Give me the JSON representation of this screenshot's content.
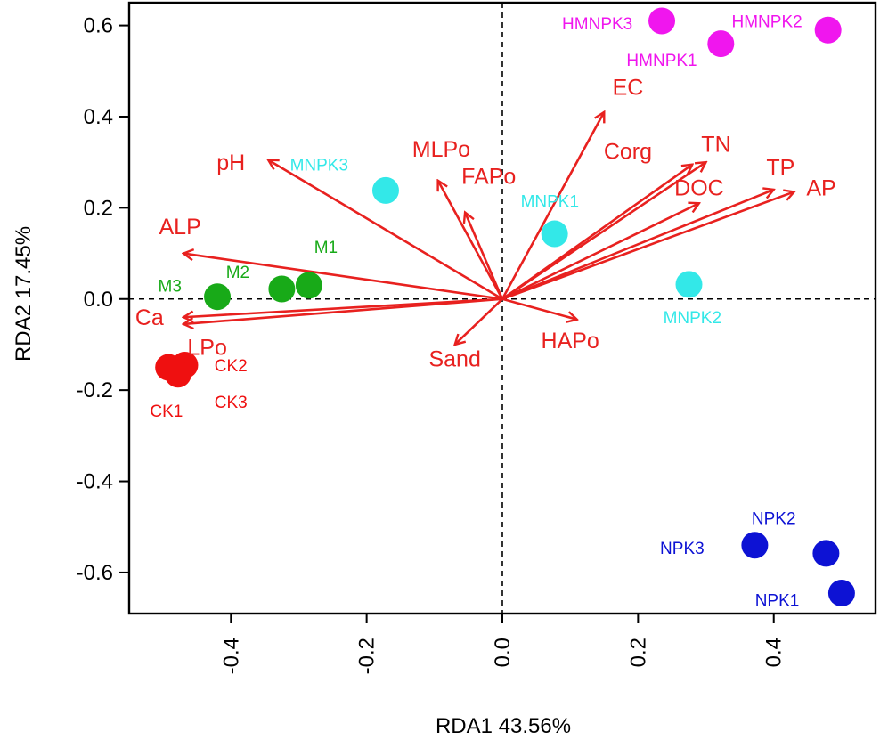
{
  "chart_data": {
    "type": "scatter",
    "xlabel": "RDA1 43.56%",
    "ylabel": "RDA2 17.45%",
    "xlim": [
      -0.55,
      0.55
    ],
    "ylim": [
      -0.69,
      0.65
    ],
    "xticks": [
      -0.4,
      -0.2,
      0.0,
      0.2,
      0.4
    ],
    "xtick_labels": [
      "-0.4",
      "-0.2",
      "0.0",
      "0.2",
      "0.4"
    ],
    "yticks": [
      -0.6,
      -0.4,
      -0.2,
      0.0,
      0.2,
      0.4,
      0.6
    ],
    "ytick_labels": [
      "-0.6",
      "-0.4",
      "-0.2",
      "0.0",
      "0.2",
      "0.4",
      "0.6"
    ],
    "grid": false,
    "reference_lines": [
      "x = 0 (dashed)",
      "y = 0 (dashed)"
    ],
    "vector_color": "#e8211f",
    "vectors": [
      {
        "label": "EC",
        "x": 0.15,
        "y": 0.41,
        "lx": 0.185,
        "ly": 0.465
      },
      {
        "label": "Corg",
        "x": 0.28,
        "y": 0.295,
        "lx": 0.185,
        "ly": 0.325
      },
      {
        "label": "TN",
        "x": 0.3,
        "y": 0.3,
        "lx": 0.315,
        "ly": 0.34
      },
      {
        "label": "TP",
        "x": 0.4,
        "y": 0.24,
        "lx": 0.41,
        "ly": 0.29
      },
      {
        "label": "DOC",
        "x": 0.29,
        "y": 0.21,
        "lx": 0.29,
        "ly": 0.245
      },
      {
        "label": "AP",
        "x": 0.43,
        "y": 0.235,
        "lx": 0.47,
        "ly": 0.245
      },
      {
        "label": "pH",
        "x": -0.345,
        "y": 0.305,
        "lx": -0.4,
        "ly": 0.3
      },
      {
        "label": "MLPo",
        "x": -0.095,
        "y": 0.26,
        "lx": -0.09,
        "ly": 0.33
      },
      {
        "label": "FAPo",
        "x": -0.055,
        "y": 0.19,
        "lx": -0.02,
        "ly": 0.27
      },
      {
        "label": "ALP",
        "x": -0.47,
        "y": 0.1,
        "lx": -0.475,
        "ly": 0.16
      },
      {
        "label": "Ca",
        "x": -0.47,
        "y": -0.04,
        "lx": -0.52,
        "ly": -0.04
      },
      {
        "label": "LPo",
        "x": -0.47,
        "y": -0.055,
        "lx": -0.435,
        "ly": -0.105
      },
      {
        "label": "Sand",
        "x": -0.07,
        "y": -0.1,
        "lx": -0.07,
        "ly": -0.13
      },
      {
        "label": "HAPo",
        "x": 0.11,
        "y": -0.045,
        "lx": 0.1,
        "ly": -0.09
      }
    ],
    "series": [
      {
        "name": "HMNPK",
        "color": "#f016ee",
        "points": [
          {
            "label": "HMNPK3",
            "x": 0.235,
            "y": 0.61,
            "lx": 0.14,
            "ly": 0.605
          },
          {
            "label": "HMNPK1",
            "x": 0.322,
            "y": 0.56,
            "lx": 0.235,
            "ly": 0.525
          },
          {
            "label": "HMNPK2",
            "x": 0.48,
            "y": 0.59,
            "lx": 0.39,
            "ly": 0.61
          }
        ]
      },
      {
        "name": "MNPK",
        "color": "#33e8e8",
        "points": [
          {
            "label": "MNPK3",
            "x": -0.172,
            "y": 0.238,
            "lx": -0.27,
            "ly": 0.295
          },
          {
            "label": "MNPK1",
            "x": 0.077,
            "y": 0.143,
            "lx": 0.07,
            "ly": 0.215
          },
          {
            "label": "MNPK2",
            "x": 0.275,
            "y": 0.032,
            "lx": 0.28,
            "ly": -0.04
          }
        ]
      },
      {
        "name": "M",
        "color": "#18aa18",
        "points": [
          {
            "label": "M1",
            "x": -0.285,
            "y": 0.03,
            "lx": -0.26,
            "ly": 0.115
          },
          {
            "label": "M2",
            "x": -0.325,
            "y": 0.022,
            "lx": -0.39,
            "ly": 0.06
          },
          {
            "label": "M3",
            "x": -0.42,
            "y": 0.005,
            "lx": -0.49,
            "ly": 0.03
          }
        ]
      },
      {
        "name": "CK",
        "color": "#ef1010",
        "points": [
          {
            "label": "CK2",
            "x": -0.468,
            "y": -0.145,
            "lx": -0.4,
            "ly": -0.145
          },
          {
            "label": "CK1",
            "x": -0.492,
            "y": -0.15,
            "lx": -0.495,
            "ly": -0.245
          },
          {
            "label": "CK3",
            "x": -0.478,
            "y": -0.165,
            "lx": -0.4,
            "ly": -0.225
          }
        ]
      },
      {
        "name": "NPK",
        "color": "#0d12d4",
        "points": [
          {
            "label": "NPK3",
            "x": 0.372,
            "y": -0.54,
            "lx": 0.265,
            "ly": -0.545
          },
          {
            "label": "NPK2",
            "x": 0.477,
            "y": -0.558,
            "lx": 0.4,
            "ly": -0.48
          },
          {
            "label": "NPK1",
            "x": 0.5,
            "y": -0.645,
            "lx": 0.405,
            "ly": -0.66
          }
        ]
      }
    ]
  }
}
